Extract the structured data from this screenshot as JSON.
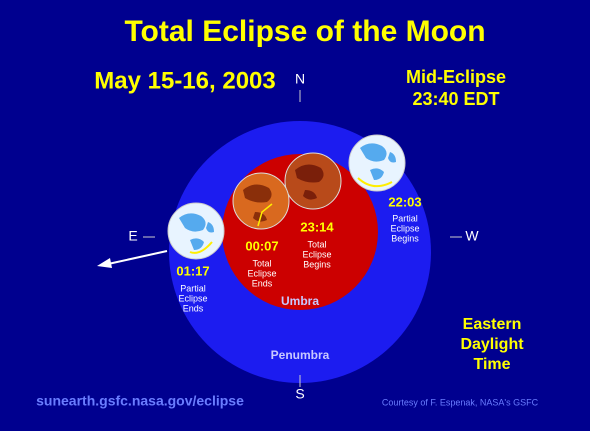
{
  "title": "Total Eclipse of the Moon",
  "date": "May 15-16, 2003",
  "mid_eclipse": {
    "label": "Mid-Eclipse",
    "time": "23:40 EDT"
  },
  "directions": {
    "north": "N",
    "south": "S",
    "east": "E",
    "west": "W"
  },
  "events": [
    {
      "time": "22:03",
      "lines": [
        "Partial",
        "Eclipse",
        "Begins"
      ]
    },
    {
      "time": "23:14",
      "lines": [
        "Total",
        "Eclipse",
        "Begins"
      ]
    },
    {
      "time": "00:07",
      "lines": [
        "Total",
        "Eclipse",
        "Ends"
      ]
    },
    {
      "time": "01:17",
      "lines": [
        "Partial",
        "Eclipse",
        "Ends"
      ]
    }
  ],
  "regions": {
    "umbra": "Umbra",
    "penumbra": "Penumbra"
  },
  "timezone": [
    "Eastern",
    "Daylight",
    "Time"
  ],
  "url": "sunearth.gsfc.nasa.gov/eclipse",
  "credit": "Courtesy of F. Espenak, NASA's GSFC"
}
